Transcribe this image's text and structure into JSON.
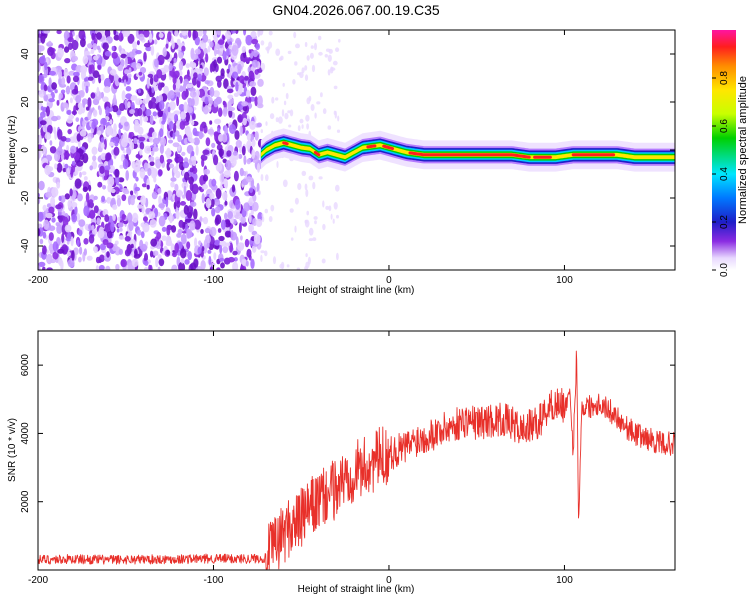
{
  "title": "GN04.2026.067.00.19.C35",
  "chart_data": [
    {
      "type": "heatmap",
      "name": "spectrogram",
      "xlabel": "Height of straight line (km)",
      "ylabel": "Frequency (Hz)",
      "xlim": [
        -200,
        163
      ],
      "ylim": [
        -50,
        50
      ],
      "xticks": [
        -200,
        -100,
        0,
        100
      ],
      "yticks": [
        -40,
        -20,
        0,
        20,
        40
      ],
      "noise_region_x": [
        -200,
        -73
      ],
      "signal_ridge": {
        "x": [
          -73,
          -70,
          -65,
          -60,
          -55,
          -50,
          -45,
          -40,
          -35,
          -30,
          -25,
          -20,
          -15,
          -10,
          -5,
          0,
          5,
          10,
          20,
          30,
          40,
          50,
          60,
          70,
          80,
          85,
          90,
          95,
          100,
          105,
          110,
          120,
          130,
          140,
          150,
          163
        ],
        "freq": [
          -2,
          0,
          2,
          3,
          2,
          1,
          0.5,
          -2,
          -1,
          -2,
          -3,
          -1,
          1,
          1.5,
          2,
          1,
          0,
          -1,
          -2,
          -2,
          -2,
          -2,
          -2,
          -2,
          -3,
          -3,
          -3,
          -3,
          -2.5,
          -2,
          -2,
          -2,
          -2,
          -3,
          -3,
          -3
        ]
      },
      "colorbar": {
        "label": "Normalized spectral amplitude",
        "ticks": [
          "0.0",
          "0.2",
          "0.4",
          "0.6",
          "0.8"
        ],
        "range": [
          0,
          1
        ]
      }
    },
    {
      "type": "line",
      "name": "snr",
      "xlabel": "Height of straight line (km)",
      "ylabel": "SNR (10 * v/v)",
      "xlim": [
        -200,
        163
      ],
      "ylim": [
        0,
        7000
      ],
      "xticks": [
        -200,
        -100,
        0,
        100
      ],
      "yticks": [
        2000,
        4000,
        6000
      ],
      "series": [
        {
          "name": "SNR",
          "color": "#e8302a",
          "x": [
            -200,
            -180,
            -160,
            -140,
            -120,
            -100,
            -80,
            -70,
            -65,
            -60,
            -55,
            -50,
            -45,
            -40,
            -35,
            -30,
            -25,
            -20,
            -15,
            -10,
            -5,
            0,
            5,
            10,
            15,
            20,
            25,
            30,
            35,
            40,
            45,
            50,
            55,
            60,
            65,
            70,
            75,
            80,
            85,
            90,
            95,
            100,
            103,
            105,
            107,
            108,
            110,
            115,
            120,
            125,
            130,
            135,
            140,
            145,
            150,
            155,
            163
          ],
          "values": [
            300,
            320,
            300,
            310,
            320,
            330,
            330,
            350,
            700,
            1100,
            1300,
            1500,
            1800,
            2000,
            2200,
            2400,
            2700,
            2900,
            3000,
            3100,
            3300,
            3400,
            3500,
            3600,
            3800,
            3900,
            4000,
            4100,
            4200,
            4300,
            4400,
            4300,
            4350,
            4400,
            4400,
            4300,
            4100,
            4200,
            4300,
            4700,
            4900,
            4800,
            5000,
            3500,
            6500,
            1500,
            4800,
            4800,
            4900,
            4700,
            4500,
            4200,
            4000,
            3900,
            3800,
            3700,
            3700
          ]
        }
      ]
    }
  ]
}
